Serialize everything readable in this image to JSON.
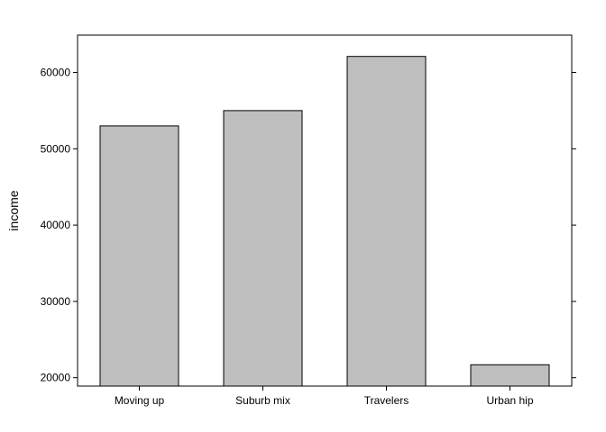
{
  "chart_data": {
    "type": "bar",
    "title": "",
    "xlabel": "",
    "ylabel": "income",
    "categories": [
      "Moving up",
      "Suburb mix",
      "Travelers",
      "Urban hip"
    ],
    "values": [
      53000,
      55000,
      62100,
      21700
    ],
    "ylim": [
      18900,
      64900
    ],
    "yticks": [
      20000,
      30000,
      40000,
      50000,
      60000
    ],
    "ytick_labels": [
      "20000",
      "30000",
      "40000",
      "50000",
      "60000"
    ],
    "grid": false,
    "legend": "none",
    "bar_color": "#bebebe",
    "bar_edge_color": "#000000"
  }
}
